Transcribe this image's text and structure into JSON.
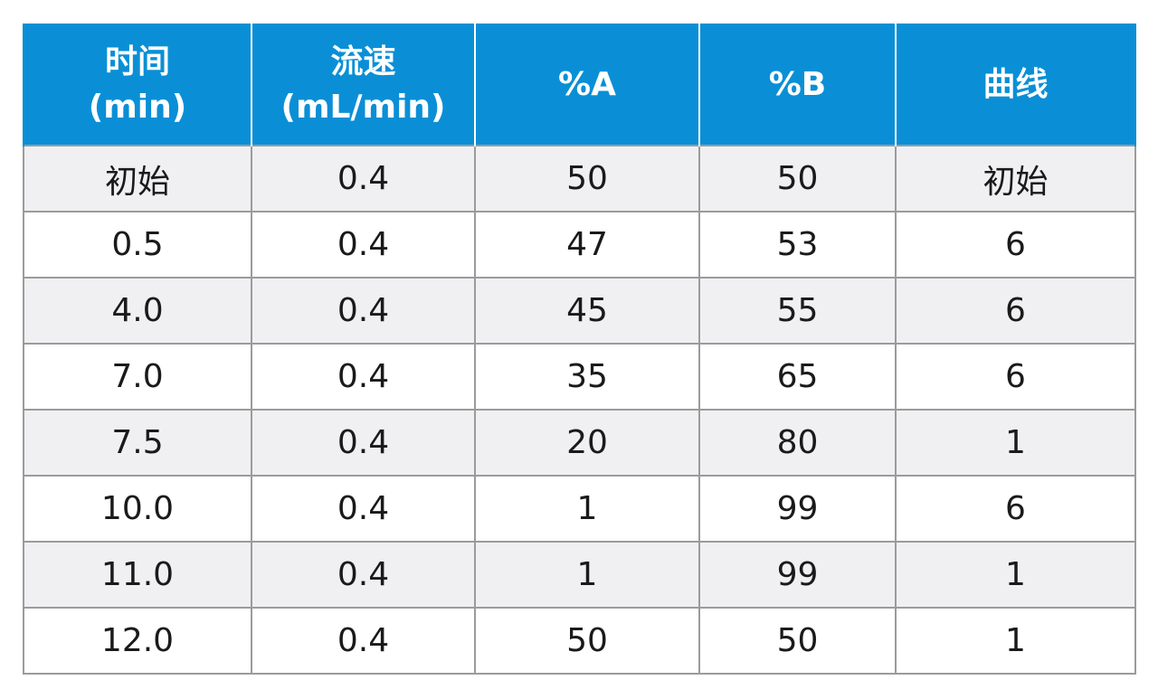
{
  "table": {
    "headers": [
      {
        "line1": "时间",
        "line2": "(min)"
      },
      {
        "line1": "流速",
        "line2": "(mL/min)"
      },
      {
        "line1": "%A",
        "line2": ""
      },
      {
        "line1": "%B",
        "line2": ""
      },
      {
        "line1": "曲线",
        "line2": ""
      }
    ],
    "rows": [
      [
        "初始",
        "0.4",
        "50",
        "50",
        "初始"
      ],
      [
        "0.5",
        "0.4",
        "47",
        "53",
        "6"
      ],
      [
        "4.0",
        "0.4",
        "45",
        "55",
        "6"
      ],
      [
        "7.0",
        "0.4",
        "35",
        "65",
        "6"
      ],
      [
        "7.5",
        "0.4",
        "20",
        "80",
        "1"
      ],
      [
        "10.0",
        "0.4",
        "1",
        "99",
        "6"
      ],
      [
        "11.0",
        "0.4",
        "1",
        "99",
        "1"
      ],
      [
        "12.0",
        "0.4",
        "50",
        "50",
        "1"
      ]
    ]
  },
  "colors": {
    "header_bg": "#0a8fd6",
    "header_text": "#ffffff",
    "row_alt_bg": "#f0f0f3",
    "grid_line": "#9b9b9b"
  }
}
